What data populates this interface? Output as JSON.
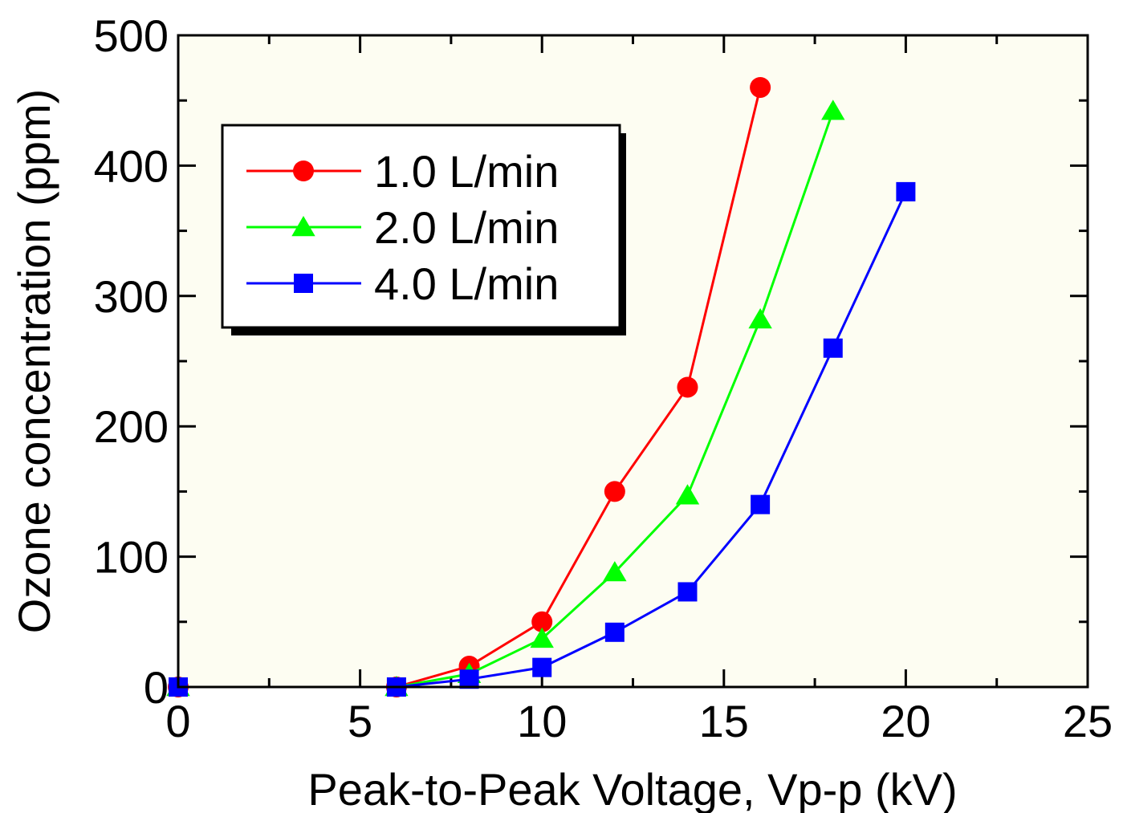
{
  "chart_data": {
    "type": "line",
    "title": "",
    "xlabel": "Peak-to-Peak Voltage, Vp-p (kV)",
    "ylabel": "Ozone concentration (ppm)",
    "xlim": [
      0,
      25
    ],
    "ylim": [
      0,
      500
    ],
    "x_ticks": [
      0,
      5,
      10,
      15,
      20,
      25
    ],
    "y_ticks": [
      0,
      100,
      200,
      300,
      400,
      500
    ],
    "x_tick_labels": [
      "0",
      "5",
      "10",
      "15",
      "20",
      "25"
    ],
    "y_tick_labels": [
      "0",
      "100",
      "200",
      "300",
      "400",
      "500"
    ],
    "grid": false,
    "legend_position": "top-left",
    "plot_background": "#fdfdf2",
    "series": [
      {
        "name": "1.0 L/min",
        "color": "#ff0000",
        "marker": "circle",
        "x": [
          0,
          6,
          8,
          10,
          12,
          14,
          16
        ],
        "y": [
          0,
          0,
          16,
          50,
          150,
          230,
          460
        ]
      },
      {
        "name": "2.0 L/min",
        "color": "#00ff00",
        "marker": "triangle",
        "x": [
          0,
          6,
          8,
          10,
          12,
          14,
          16,
          18
        ],
        "y": [
          0,
          0,
          10,
          37,
          88,
          147,
          282,
          442
        ]
      },
      {
        "name": "4.0 L/min",
        "color": "#0000ff",
        "marker": "square",
        "x": [
          0,
          6,
          8,
          10,
          12,
          14,
          16,
          18,
          20
        ],
        "y": [
          0,
          0,
          6,
          15,
          42,
          73,
          140,
          260,
          380
        ]
      }
    ]
  }
}
